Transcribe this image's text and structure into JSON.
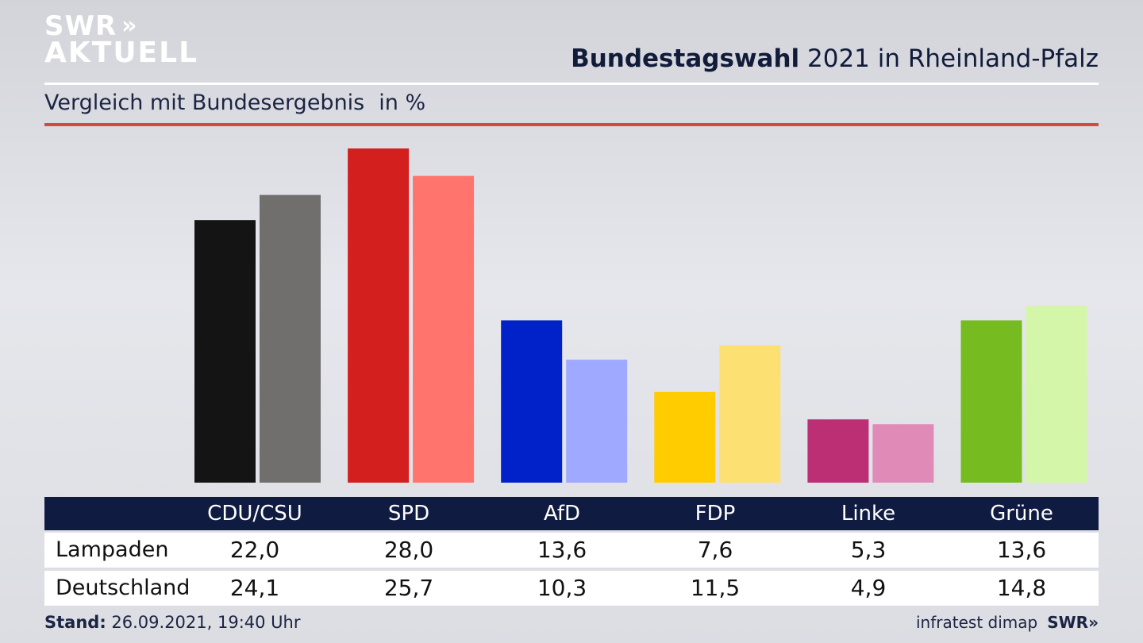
{
  "logo": {
    "line1": "SWR",
    "arrows": "»",
    "line2": "AKTUELL"
  },
  "header": {
    "title_strong": "Bundestagswahl",
    "title_rest": " 2021 in Rheinland-Pfalz",
    "subtitle": "Vergleich mit Bundesergebnis",
    "unit": "in %"
  },
  "colors": {
    "header_bar": "#101b41",
    "accent_red_rule": "#d44a3e"
  },
  "chart_data": {
    "type": "bar",
    "categories": [
      "CDU/CSU",
      "SPD",
      "AfD",
      "FDP",
      "Linke",
      "Grüne"
    ],
    "series": [
      {
        "name": "Lampaden",
        "values": [
          22.0,
          28.0,
          13.6,
          7.6,
          5.3,
          13.6
        ],
        "colors": [
          "#141414",
          "#d41f1f",
          "#0022c8",
          "#ffcc00",
          "#bc2f75",
          "#76bc21"
        ]
      },
      {
        "name": "Deutschland",
        "values": [
          24.1,
          25.7,
          10.3,
          11.5,
          4.9,
          14.8
        ],
        "colors": [
          "#706f6d",
          "#ff746c",
          "#9fa9ff",
          "#fde072",
          "#e08ab7",
          "#d3f6a8"
        ]
      }
    ],
    "ylim": [
      0,
      28.0
    ],
    "title": "Bundestagswahl 2021 in Rheinland-Pfalz",
    "subtitle": "Vergleich mit Bundesergebnis",
    "unit": "in %"
  },
  "table": {
    "headers": [
      "CDU/CSU",
      "SPD",
      "AfD",
      "FDP",
      "Linke",
      "Grüne"
    ],
    "rows": [
      {
        "label": "Lampaden",
        "values": [
          "22,0",
          "28,0",
          "13,6",
          "7,6",
          "5,3",
          "13,6"
        ]
      },
      {
        "label": "Deutschland",
        "values": [
          "24,1",
          "25,7",
          "10,3",
          "11,5",
          "4,9",
          "14,8"
        ]
      }
    ]
  },
  "footer": {
    "stand_label": "Stand:",
    "stand_value": " 26.09.2021, 19:40 Uhr",
    "source": "infratest dimap",
    "brand": "SWR»"
  }
}
